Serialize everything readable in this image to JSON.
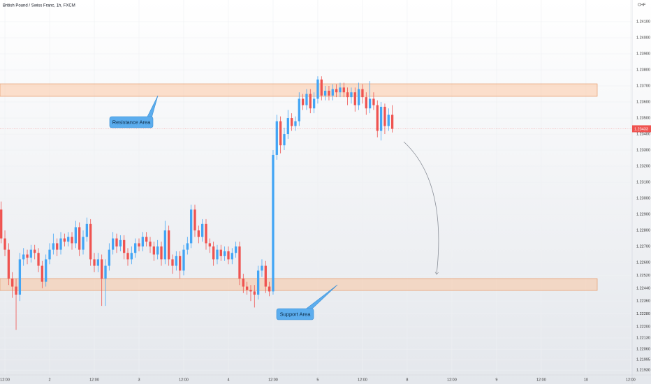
{
  "chart_data": {
    "type": "candlestick",
    "title": "British Pound / Swiss Franc, 1h, FXCM",
    "currency": "CHF",
    "up_color": "#42a5f5",
    "down_color": "#ef5350",
    "grid": true,
    "open": [
      1.2293,
      1.2275,
      1.2268,
      1.225,
      1.2245,
      1.224,
      1.2262,
      1.2265,
      1.2263,
      1.2268,
      1.2266,
      1.2258,
      1.2248,
      1.2262,
      1.2268,
      1.2272,
      1.2268,
      1.2275,
      1.2273,
      1.2276,
      1.2272,
      1.2282,
      1.2268,
      1.2276,
      1.2284,
      1.2262,
      1.2258,
      1.2262,
      1.225,
      1.2258,
      1.2268,
      1.2275,
      1.227,
      1.2274,
      1.2266,
      1.2262,
      1.2266,
      1.2272,
      1.227,
      1.2276,
      1.2273,
      1.227,
      1.2265,
      1.227,
      1.2262,
      1.228,
      1.2262,
      1.2258,
      1.2264,
      1.2255,
      1.2268,
      1.2272,
      1.2293,
      1.228,
      1.2276,
      1.2284,
      1.2272,
      1.227,
      1.2262,
      1.2268,
      1.2264,
      1.2267,
      1.2262,
      1.2266,
      1.227,
      1.225,
      1.2245,
      1.2243,
      1.2242,
      1.224,
      1.2255,
      1.2258,
      1.2245,
      1.2242,
      1.2327,
      1.2348,
      1.2333,
      1.234,
      1.235,
      1.2345,
      1.2348,
      1.2362,
      1.2358,
      1.2365,
      1.2356,
      1.2362,
      1.2374,
      1.2364,
      1.2367,
      1.2364,
      1.2368,
      1.2366,
      1.2369,
      1.2366,
      1.2363,
      1.2366,
      1.2358,
      1.2368,
      1.2363,
      1.2356,
      1.2362,
      1.2358,
      1.2342,
      1.2357,
      1.2345,
      1.2352
    ],
    "high": [
      1.2298,
      1.228,
      1.2272,
      1.2254,
      1.225,
      1.2266,
      1.2269,
      1.2268,
      1.2271,
      1.2271,
      1.2269,
      1.2261,
      1.2265,
      1.2272,
      1.2278,
      1.2275,
      1.2279,
      1.2278,
      1.2279,
      1.2279,
      1.2286,
      1.2285,
      1.228,
      1.2288,
      1.2287,
      1.2266,
      1.2266,
      1.2265,
      1.2262,
      1.2272,
      1.2279,
      1.2278,
      1.2277,
      1.2277,
      1.2269,
      1.227,
      1.2275,
      1.2275,
      1.2279,
      1.2279,
      1.2276,
      1.2273,
      1.2274,
      1.2273,
      1.2286,
      1.2283,
      1.2265,
      1.2267,
      1.2267,
      1.2271,
      1.2276,
      1.2296,
      1.2296,
      1.2283,
      1.2287,
      1.2287,
      1.2275,
      1.2273,
      1.2271,
      1.2271,
      1.227,
      1.227,
      1.2269,
      1.2273,
      1.2273,
      1.2253,
      1.2248,
      1.2246,
      1.2246,
      1.2258,
      1.2262,
      1.2261,
      1.2248,
      1.233,
      1.2352,
      1.2351,
      1.2344,
      1.2355,
      1.2353,
      1.2351,
      1.2366,
      1.2365,
      1.2368,
      1.2368,
      1.2366,
      1.2376,
      1.2376,
      1.237,
      1.237,
      1.2371,
      1.2371,
      1.2372,
      1.2372,
      1.2369,
      1.2369,
      1.2369,
      1.2372,
      1.2371,
      1.2366,
      1.2373,
      1.2366,
      1.2361,
      1.236,
      1.2359,
      1.2356,
      1.2358
    ],
    "low": [
      1.2272,
      1.2264,
      1.2246,
      1.2238,
      1.2218,
      1.2236,
      1.2258,
      1.2259,
      1.226,
      1.2262,
      1.2254,
      1.2244,
      1.2245,
      1.2259,
      1.2265,
      1.2264,
      1.2265,
      1.227,
      1.227,
      1.2268,
      1.2269,
      1.2264,
      1.2265,
      1.2273,
      1.2258,
      1.2254,
      1.2254,
      1.2233,
      1.2233,
      1.2255,
      1.2265,
      1.2266,
      1.2267,
      1.2262,
      1.2258,
      1.2259,
      1.2263,
      1.2267,
      1.2267,
      1.227,
      1.2266,
      1.2261,
      1.2262,
      1.2258,
      1.2259,
      1.2258,
      1.2253,
      1.2255,
      1.225,
      1.2252,
      1.2265,
      1.2269,
      1.2276,
      1.2272,
      1.2273,
      1.2268,
      1.2266,
      1.2258,
      1.2259,
      1.2261,
      1.2261,
      1.2259,
      1.2259,
      1.2263,
      1.2246,
      1.2241,
      1.224,
      1.2236,
      1.2232,
      1.2237,
      1.2251,
      1.2241,
      1.2239,
      1.224,
      1.2324,
      1.2328,
      1.233,
      1.2337,
      1.2342,
      1.2342,
      1.2345,
      1.2355,
      1.2355,
      1.2353,
      1.2353,
      1.2359,
      1.2361,
      1.2361,
      1.2361,
      1.2361,
      1.2363,
      1.2363,
      1.2363,
      1.2358,
      1.2359,
      1.2354,
      1.2355,
      1.2359,
      1.2352,
      1.2353,
      1.2355,
      1.2338,
      1.2336,
      1.234,
      1.2342,
      1.2341
    ],
    "close": [
      1.2275,
      1.2268,
      1.225,
      1.2245,
      1.224,
      1.2262,
      1.2265,
      1.2263,
      1.2268,
      1.2266,
      1.2258,
      1.2248,
      1.2262,
      1.2268,
      1.2272,
      1.2268,
      1.2275,
      1.2273,
      1.2276,
      1.2272,
      1.2282,
      1.2268,
      1.2276,
      1.2284,
      1.2262,
      1.2258,
      1.2262,
      1.225,
      1.2258,
      1.2268,
      1.2275,
      1.227,
      1.2274,
      1.2266,
      1.2262,
      1.2266,
      1.2272,
      1.227,
      1.2276,
      1.2273,
      1.227,
      1.2265,
      1.227,
      1.2262,
      1.228,
      1.2262,
      1.2258,
      1.2264,
      1.2255,
      1.2268,
      1.2272,
      1.2293,
      1.228,
      1.2276,
      1.2284,
      1.2272,
      1.227,
      1.2262,
      1.2268,
      1.2264,
      1.2267,
      1.2262,
      1.2266,
      1.227,
      1.225,
      1.2245,
      1.2243,
      1.2242,
      1.224,
      1.2255,
      1.2258,
      1.2245,
      1.2242,
      1.2327,
      1.2348,
      1.2333,
      1.234,
      1.235,
      1.2345,
      1.2348,
      1.2362,
      1.2358,
      1.2365,
      1.2356,
      1.2362,
      1.2374,
      1.2364,
      1.2367,
      1.2364,
      1.2368,
      1.2366,
      1.2369,
      1.2366,
      1.2363,
      1.2366,
      1.2358,
      1.2368,
      1.2363,
      1.2356,
      1.2362,
      1.2358,
      1.2342,
      1.2357,
      1.2345,
      1.2352,
      1.23433
    ],
    "xlim": [
      -0.32,
      169.4
    ],
    "xticks": [
      {
        "value": 1,
        "label": "12:00"
      },
      {
        "value": 13,
        "label": "2"
      },
      {
        "value": 25,
        "label": "12:00"
      },
      {
        "value": 37,
        "label": "3"
      },
      {
        "value": 49,
        "label": "12:00"
      },
      {
        "value": 61,
        "label": "4"
      },
      {
        "value": 73,
        "label": "12:00"
      },
      {
        "value": 85,
        "label": "5"
      },
      {
        "value": 97,
        "label": "12:00"
      },
      {
        "value": 109,
        "label": "8"
      },
      {
        "value": 121,
        "label": "12:00"
      },
      {
        "value": 133,
        "label": "9"
      },
      {
        "value": 145,
        "label": "12:00"
      },
      {
        "value": 157,
        "label": "10"
      },
      {
        "value": 169,
        "label": "12:00"
      }
    ],
    "ylim": [
      1.219,
      1.24235
    ],
    "yticks": [
      {
        "value": 1.241,
        "label": "1.24100"
      },
      {
        "value": 1.24,
        "label": "1.24000"
      },
      {
        "value": 1.239,
        "label": "1.23900"
      },
      {
        "value": 1.238,
        "label": "1.23800"
      },
      {
        "value": 1.237,
        "label": "1.23700"
      },
      {
        "value": 1.236,
        "label": "1.23600"
      },
      {
        "value": 1.235,
        "label": "1.23500"
      },
      {
        "value": 1.234,
        "label": "1.23400"
      },
      {
        "value": 1.233,
        "label": "1.23300"
      },
      {
        "value": 1.232,
        "label": "1.23200"
      },
      {
        "value": 1.231,
        "label": "1.23100"
      },
      {
        "value": 1.23,
        "label": "1.23000"
      },
      {
        "value": 1.229,
        "label": "1.22900"
      },
      {
        "value": 1.228,
        "label": "1.22800"
      },
      {
        "value": 1.227,
        "label": "1.22700"
      },
      {
        "value": 1.226,
        "label": "1.22600"
      },
      {
        "value": 1.2252,
        "label": "1.22520"
      },
      {
        "value": 1.2244,
        "label": "1.22440"
      },
      {
        "value": 1.2236,
        "label": "1.22360"
      },
      {
        "value": 1.2228,
        "label": "1.22280"
      },
      {
        "value": 1.222,
        "label": "1.22200"
      },
      {
        "value": 1.2213,
        "label": "1.22130"
      },
      {
        "value": 1.2206,
        "label": "1.22060"
      },
      1.21995,
      {
        "value": 1.2193,
        "label": "1.21930"
      }
    ],
    "last_price": {
      "value": 1.23433,
      "label": "1.23433"
    },
    "zones": [
      {
        "low": 1.23635,
        "high": 1.23713
      },
      {
        "low": 1.22426,
        "high": 1.225
      }
    ],
    "annotations": [
      {
        "text": "Resistance Area"
      },
      {
        "text": "Support Area"
      }
    ]
  }
}
